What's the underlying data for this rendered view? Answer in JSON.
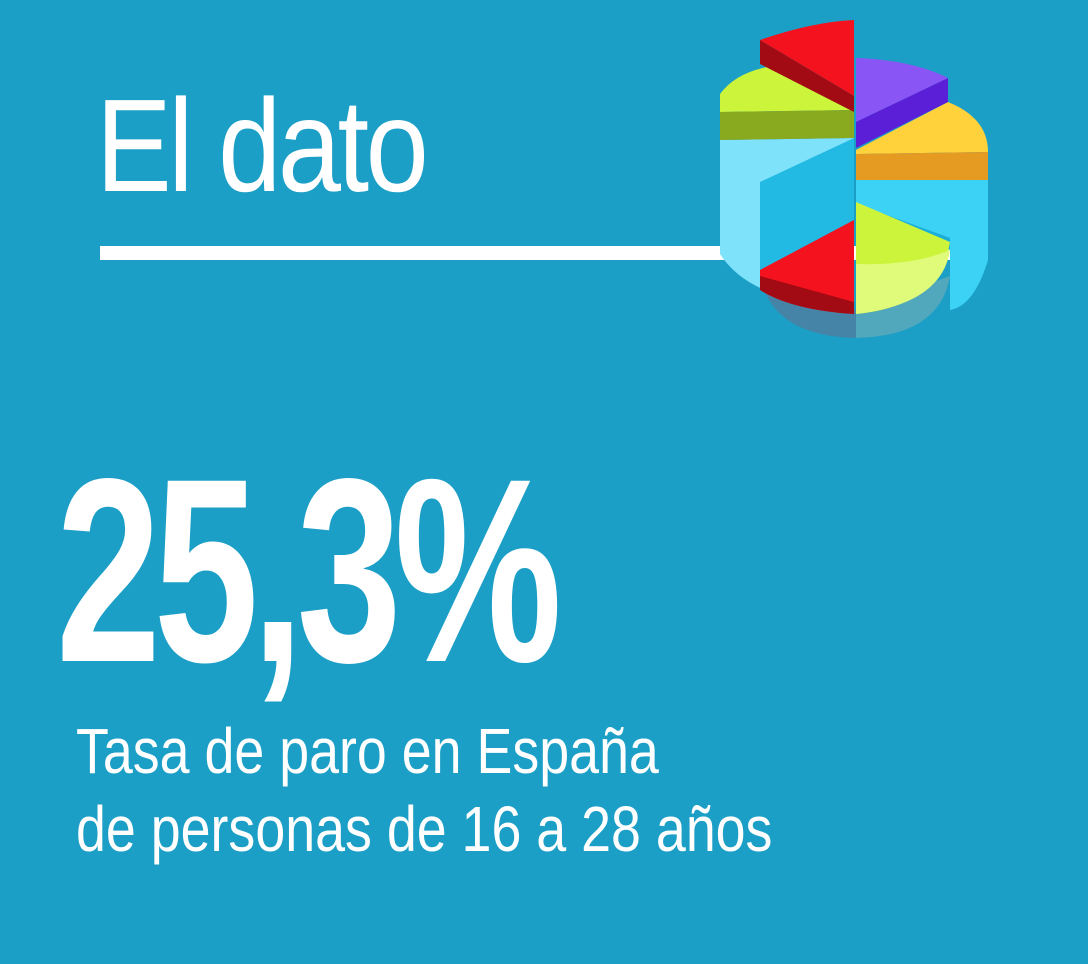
{
  "header": {
    "title": "El dato"
  },
  "highlight": {
    "value": "25,3%",
    "caption_line_1": "Tasa de paro en España",
    "caption_line_2": "de personas de 16 a 28 años"
  },
  "graphic": {
    "icon": "pie-chart-3d-icon"
  },
  "colors": {
    "background": "#1b9fc6",
    "text": "#ffffff",
    "red": "#f5121f",
    "red_dark": "#a30b14",
    "purple": "#8a55f5",
    "purple_dark": "#5a1fd6",
    "yellow": "#ffd23c",
    "orange": "#e59a22",
    "lime": "#cbf43a",
    "lime_dark": "#89a91f",
    "cyan": "#3cd2f6",
    "cyan_dark": "#1aaed8",
    "cyan_light": "#7ee2fb",
    "lime_light": "#dffb79",
    "shadow": "#4d7fa1"
  }
}
